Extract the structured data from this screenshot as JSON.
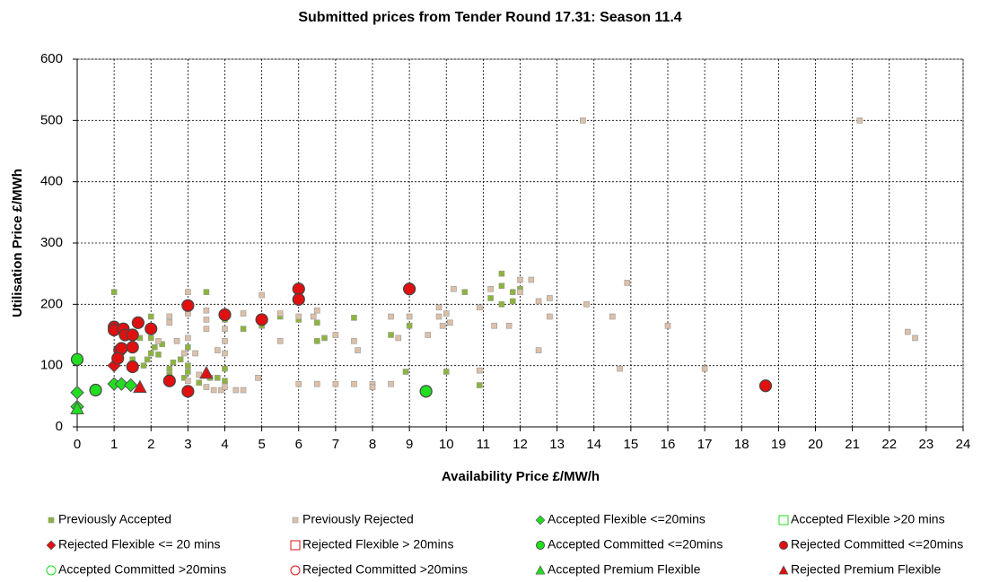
{
  "chart_data": {
    "type": "scatter",
    "title": "Submitted prices from Tender Round 17.31: Season 11.4",
    "x_label": "Availability Price £/MW/h",
    "y_label": "Utilisation Price £/MWh",
    "xlim": [
      0,
      24
    ],
    "ylim": [
      0,
      600
    ],
    "xticks": [
      0,
      1,
      2,
      3,
      4,
      5,
      6,
      7,
      8,
      9,
      10,
      11,
      12,
      13,
      14,
      15,
      16,
      17,
      18,
      19,
      20,
      21,
      22,
      23,
      24
    ],
    "yticks": [
      0,
      100,
      200,
      300,
      400,
      500,
      600
    ],
    "grid": true,
    "series": [
      {
        "name": "Previously Accepted",
        "marker": "small-square",
        "color": "#8cb43c",
        "x": [
          1,
          1.3,
          1.5,
          1.7,
          1.8,
          1.9,
          2,
          2,
          2,
          2.1,
          2.2,
          2.3,
          2.5,
          2.5,
          2.6,
          2.8,
          2.9,
          3,
          3,
          3,
          3.3,
          3.5,
          3.6,
          3.8,
          4,
          4,
          4,
          4.5,
          5,
          5.5,
          6,
          6.5,
          6.7,
          6.5,
          7.5,
          8.5,
          8.9,
          9,
          10,
          10.5,
          10.9,
          11.2,
          11.5,
          11.5,
          11.8,
          11.8,
          12,
          11.5
        ],
        "values": [
          220,
          130,
          110,
          145,
          100,
          110,
          180,
          145,
          120,
          130,
          118,
          135,
          95,
          85,
          105,
          110,
          80,
          100,
          90,
          130,
          72,
          220,
          80,
          80,
          95,
          175,
          75,
          160,
          165,
          180,
          175,
          170,
          145,
          140,
          178,
          150,
          90,
          165,
          90,
          220,
          68,
          210,
          250,
          230,
          220,
          205,
          225,
          200
        ]
      },
      {
        "name": "Previously Rejected",
        "marker": "small-square",
        "color": "#dcc0a8",
        "x": [
          1,
          2.2,
          2.5,
          2.5,
          2.7,
          2.9,
          3,
          3,
          3,
          3,
          3.2,
          3.3,
          3.5,
          3.5,
          3.5,
          3.5,
          3.7,
          3.8,
          3.9,
          4,
          4,
          4,
          4,
          4.3,
          4.5,
          4.5,
          4.9,
          5,
          5,
          5.5,
          5.5,
          6,
          6,
          6.4,
          6.5,
          6.5,
          7,
          7,
          7.5,
          7.5,
          7.6,
          8,
          8,
          8.5,
          8.5,
          8.7,
          9,
          9.5,
          9.8,
          9.8,
          9.9,
          10,
          10.1,
          10.2,
          10.9,
          10.9,
          11.2,
          11.3,
          11.7,
          12,
          12,
          12.3,
          12.5,
          12.5,
          12.8,
          12.8,
          13.7,
          13.8,
          14.5,
          14.7,
          14.9,
          16,
          17,
          21.2,
          22.5,
          22.7
        ],
        "values": [
          160,
          140,
          170,
          180,
          140,
          120,
          220,
          185,
          145,
          75,
          120,
          85,
          190,
          175,
          160,
          65,
          60,
          125,
          60,
          160,
          140,
          120,
          65,
          60,
          185,
          60,
          80,
          215,
          170,
          185,
          140,
          180,
          70,
          180,
          190,
          70,
          150,
          70,
          140,
          70,
          125,
          70,
          65,
          180,
          70,
          145,
          180,
          150,
          195,
          180,
          165,
          185,
          170,
          225,
          195,
          92,
          225,
          165,
          165,
          240,
          220,
          240,
          205,
          125,
          210,
          180,
          500,
          200,
          180,
          95,
          235,
          165,
          95,
          500,
          155,
          145
        ]
      },
      {
        "name": "Accepted Flexible <=20mins",
        "marker": "diamond",
        "color": "#22dd22",
        "x": [
          0,
          0,
          1,
          1.2,
          1.45
        ],
        "values": [
          56,
          33,
          70,
          70,
          68
        ]
      },
      {
        "name": "Accepted Flexible >20 mins",
        "marker": "hollow-square",
        "color": "#22dd22",
        "x": [],
        "values": []
      },
      {
        "name": "Rejected Flexible <= 20 mins",
        "marker": "diamond",
        "color": "#e01010",
        "x": [
          1
        ],
        "values": [
          100
        ]
      },
      {
        "name": "Rejected Flexible > 20mins",
        "marker": "hollow-square",
        "color": "#e01010",
        "x": [],
        "values": []
      },
      {
        "name": "Accepted Committed <=20mins",
        "marker": "circle",
        "color": "#22dd22",
        "x": [
          0,
          0.5,
          9.45
        ],
        "values": [
          110,
          60,
          58
        ]
      },
      {
        "name": "Rejected Committed <=20mins",
        "marker": "circle",
        "color": "#e01010",
        "x": [
          1,
          1,
          1.15,
          1.2,
          1.1,
          1.25,
          1.3,
          1.5,
          1.5,
          1.5,
          1.65,
          2,
          2.5,
          3,
          3,
          4,
          5,
          6,
          6,
          9,
          18.65
        ],
        "values": [
          163,
          158,
          125,
          128,
          112,
          160,
          150,
          150,
          130,
          98,
          170,
          160,
          75,
          198,
          58,
          183,
          175,
          225,
          208,
          225,
          67
        ]
      },
      {
        "name": "Accepted Committed >20mins",
        "marker": "hollow-circle",
        "color": "#22dd22",
        "x": [],
        "values": []
      },
      {
        "name": "Rejected Committed >20mins",
        "marker": "hollow-circle",
        "color": "#e01010",
        "x": [],
        "values": []
      },
      {
        "name": "Accepted Premium Flexible",
        "marker": "triangle",
        "color": "#22dd22",
        "x": [
          0
        ],
        "values": [
          30
        ]
      },
      {
        "name": "Rejected Premium Flexible",
        "marker": "triangle",
        "color": "#e01010",
        "x": [
          1.7,
          3.5
        ],
        "values": [
          65,
          88
        ]
      }
    ]
  }
}
